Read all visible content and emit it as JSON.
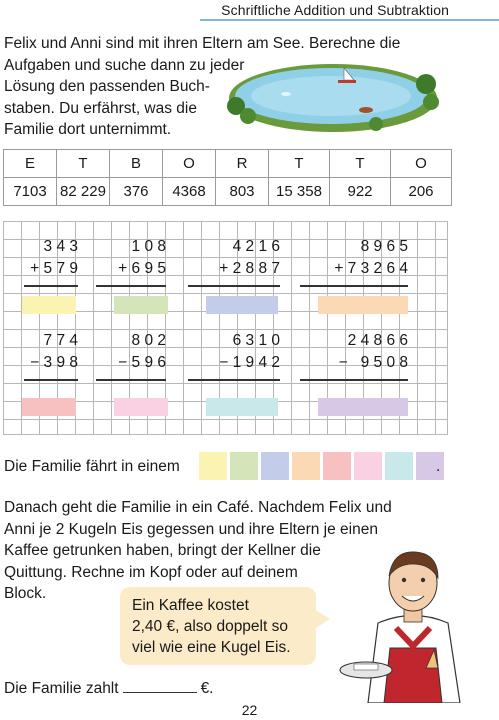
{
  "header": {
    "title": "Schriftliche Addition und Subtraktion"
  },
  "intro": {
    "lines": [
      "Felix und Anni sind mit ihren Eltern am See. Berechne die",
      "Aufgaben und suche dann zu jeder",
      "Lösung den passenden Buch-",
      "staben. Du erfährst, was die",
      "Familie dort unternimmt."
    ]
  },
  "key": {
    "letters": [
      "E",
      "T",
      "B",
      "O",
      "R",
      "T",
      "T",
      "O"
    ],
    "numbers": [
      "7103",
      "82 229",
      "376",
      "4368",
      "803",
      "15 358",
      "922",
      "206"
    ]
  },
  "problems": {
    "add": [
      {
        "a": "3 4 3",
        "b": "+ 5 7 9"
      },
      {
        "a": "1 0 8",
        "b": "+ 6 9 5"
      },
      {
        "a": "4 2 1 6",
        "b": "+ 2 8 8 7"
      },
      {
        "a": "8 9 6 5",
        "b": "+ 7 3 2 6 4"
      }
    ],
    "sub": [
      {
        "a": "7 7 4",
        "b": "− 3 9 8"
      },
      {
        "a": "8 0 2",
        "b": "− 5 9 6"
      },
      {
        "a": "6 3 1 0",
        "b": "− 1 9 4 2"
      },
      {
        "a": "2 4 8 6 6",
        "b": "−   9 5 0 8"
      }
    ]
  },
  "colors": {
    "yellow": "#fbf3b2",
    "green": "#d4e5b9",
    "blue": "#c3cdea",
    "orange": "#fbd9b4",
    "red": "#f7c1c1",
    "pink": "#f9d1e2",
    "cyan": "#c8e8ea",
    "lilac": "#d7c9e6"
  },
  "sentence1": {
    "text": "Die Familie fährt in einem",
    "end": "."
  },
  "para": {
    "lines": [
      "Danach geht die Familie in ein Café. Nachdem Felix und",
      "Anni je 2 Kugeln Eis gegessen und ihre Eltern je einen",
      "Kaffee getrunken haben, bringt der Kellner die",
      "Quittung. Rechne im Kopf oder auf deinem",
      "Block."
    ]
  },
  "bubble": {
    "lines": [
      "Ein Kaffee kostet",
      "2,40 €, also doppelt so",
      "viel wie eine Kugel Eis."
    ]
  },
  "total": {
    "text": "Die Familie zahlt",
    "unit": "€."
  },
  "page": {
    "number": "22"
  }
}
